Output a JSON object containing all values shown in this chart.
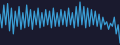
{
  "values": [
    1.5,
    -3.0,
    4.5,
    -2.0,
    5.0,
    -4.0,
    3.5,
    -5.0,
    2.5,
    -2.5,
    4.0,
    -3.5,
    2.0,
    -3.0,
    4.5,
    -2.5,
    3.0,
    -3.5,
    2.5,
    -2.0,
    3.5,
    -3.0,
    2.0,
    -2.5,
    3.0,
    -2.0,
    2.5,
    -3.0,
    3.5,
    -2.5,
    2.0,
    -2.5,
    3.0,
    -2.0,
    2.5,
    -2.5,
    3.5,
    -2.0,
    2.0,
    -3.0,
    4.0,
    -2.5,
    5.5,
    -2.0,
    4.0,
    -3.0,
    3.5,
    -2.5,
    3.0,
    -2.0,
    2.5,
    -2.5,
    1.5,
    -3.5,
    0.5,
    -2.0,
    -1.0,
    -3.5,
    -1.5,
    -2.5,
    0.5,
    -5.0,
    -2.0,
    -8.0
  ],
  "line_color": "#3a9fd6",
  "background_color": "#1a1a2e",
  "linewidth": 0.9
}
